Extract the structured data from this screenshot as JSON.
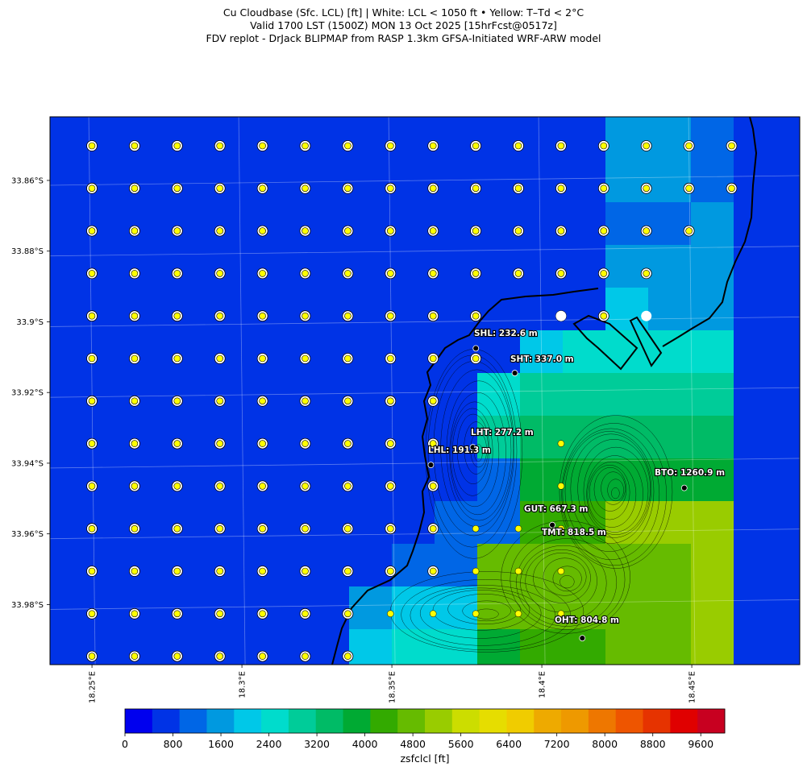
{
  "title": {
    "line1": "Cu Cloudbase (Sfc. LCL) [ft]  |  White: LCL < 1050 ft • Yellow: T–Td < 2°C",
    "line2": "Valid 1700 LST (1500Z) MON 13 Oct 2025 [15hrFcst@0517z]",
    "line3": "FDV replot - DrJack BLIPMAP from RASP 1.3km GFSA-Initiated WRF-ARW model"
  },
  "map": {
    "lon_range": [
      18.236,
      18.486
    ],
    "lat_range": [
      -33.842,
      -33.997
    ],
    "lat_labels": [
      "33.86°S",
      "33.88°S",
      "33.9°S",
      "33.92°S",
      "33.94°S",
      "33.96°S",
      "33.98°S"
    ],
    "lat_values": [
      -33.86,
      -33.88,
      -33.9,
      -33.92,
      -33.94,
      -33.96,
      -33.98
    ],
    "lon_labels": [
      "18.25°E",
      "18.3°E",
      "18.35°E",
      "18.4°E",
      "18.45°E"
    ],
    "lon_values": [
      18.25,
      18.3,
      18.35,
      18.4,
      18.45
    ],
    "stations": [
      {
        "name": "SHL",
        "label": "SHL: 232.6 m",
        "lon": 18.378,
        "lat": -33.9075
      },
      {
        "name": "SHT",
        "label": "SHT: 337.0 m",
        "lon": 18.391,
        "lat": -33.9145
      },
      {
        "name": "LHT",
        "label": "LHT: 277.2 m",
        "lon": 18.377,
        "lat": -33.9355
      },
      {
        "name": "LHL",
        "label": "LHL: 191.3 m",
        "lon": 18.363,
        "lat": -33.9405
      },
      {
        "name": "BTO",
        "label": "BTO: 1260.9 m",
        "lon": 18.4475,
        "lat": -33.947
      },
      {
        "name": "GUT",
        "label": "GUT: 667.3 m",
        "lon": 18.4035,
        "lat": -33.9575
      },
      {
        "name": "TMT",
        "label": "TMT: 818.5 m",
        "lon": 18.4095,
        "lat": -33.959
      },
      {
        "name": "OHT",
        "label": "OHT: 804.8 m",
        "lon": 18.4135,
        "lat": -33.9895
      }
    ]
  },
  "colorbar": {
    "title": "zsfclcl [ft]",
    "tick_labels": [
      "0",
      "800",
      "1600",
      "2400",
      "3200",
      "4000",
      "4800",
      "5600",
      "6400",
      "7200",
      "8000",
      "8800",
      "9600"
    ],
    "colors": [
      "#0000ee",
      "#0033e6",
      "#0066e6",
      "#0099e0",
      "#00c8e8",
      "#00dccc",
      "#00cc99",
      "#00bb66",
      "#00aa33",
      "#33aa00",
      "#66bb00",
      "#99cc00",
      "#ccdd00",
      "#e6dd00",
      "#f0cc00",
      "#eeaa00",
      "#ee9900",
      "#ee7700",
      "#ee5500",
      "#e63300",
      "#e00000",
      "#c80020"
    ],
    "range": [
      0,
      10000
    ]
  }
}
